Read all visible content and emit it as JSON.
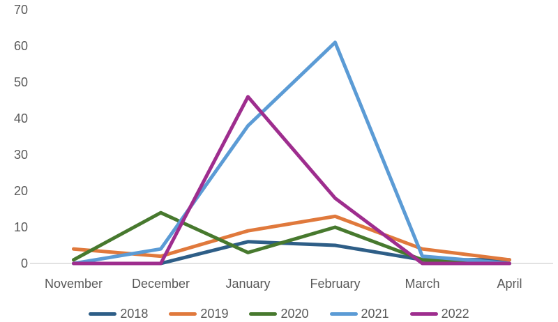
{
  "figure": {
    "background": "#FFFFFF",
    "axis_color": "#D9D9D9",
    "label_color": "#595959"
  },
  "chart_data": {
    "type": "line",
    "title": "",
    "xlabel": "",
    "ylabel": "",
    "categories": [
      "November",
      "December",
      "January",
      "February",
      "March",
      "April"
    ],
    "series": [
      {
        "name": "2018",
        "color": "#2E5E87",
        "values": [
          0,
          0,
          6,
          5,
          1,
          1
        ]
      },
      {
        "name": "2019",
        "color": "#E0793C",
        "values": [
          4,
          2,
          9,
          13,
          4,
          1
        ]
      },
      {
        "name": "2020",
        "color": "#47792E",
        "values": [
          1,
          14,
          3,
          10,
          1,
          0
        ]
      },
      {
        "name": "2021",
        "color": "#5B9BD5",
        "values": [
          0,
          4,
          38,
          61,
          2,
          0
        ]
      },
      {
        "name": "2022",
        "color": "#9E2D8E",
        "values": [
          0,
          0,
          46,
          18,
          0,
          0
        ]
      }
    ],
    "ylim": [
      0,
      70
    ],
    "yticks": [
      0,
      10,
      20,
      30,
      40,
      50,
      60,
      70
    ],
    "grid": "baseline-only",
    "legend_position": "bottom"
  }
}
